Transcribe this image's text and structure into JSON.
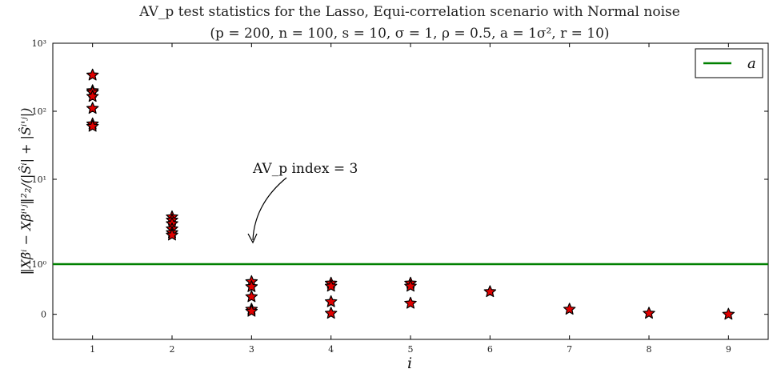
{
  "chart_data": {
    "type": "scatter",
    "title": "AV_p test statistics for the Lasso, Equi-correlation scenario with Normal noise",
    "subtitle": "(p = 200, n = 100, s = 10, σ = 1, ρ = 0.5, a = 1σ², r = 10)",
    "xlabel": "i",
    "ylabel": "‖Xβ̄ⁱ − Xβ̄ⁱ'ʲ‖²₂/(|Ŝⁱ| + |Ŝⁱ'ʲ|)",
    "x_ticks": [
      "1",
      "2",
      "3",
      "4",
      "5",
      "6",
      "7",
      "8",
      "9"
    ],
    "y_ticks": [
      {
        "value": 0,
        "label": "0"
      },
      {
        "value": 1,
        "label": "10⁰"
      },
      {
        "value": 10,
        "label": "10¹"
      },
      {
        "value": 100,
        "label": "10²"
      },
      {
        "value": 1000,
        "label": "10³"
      }
    ],
    "yscale": "symlog",
    "xlim": [
      0.5,
      9.5
    ],
    "ylim": [
      -0.5,
      1000
    ],
    "grid": false,
    "legend": {
      "position": "top-right",
      "entries": [
        {
          "label": "a",
          "color": "#008000"
        }
      ]
    },
    "threshold_line": {
      "y": 1,
      "color": "#008000"
    },
    "annotation": {
      "text": "AV_p index = 3",
      "points_to": {
        "x": 3,
        "y": 1.5
      }
    },
    "points": [
      {
        "x": 1,
        "values": [
          340,
          200,
          190,
          165,
          110,
          65,
          60
        ]
      },
      {
        "x": 2,
        "values": [
          3.6,
          3.3,
          3.0,
          2.6,
          2.35,
          2.2
        ]
      },
      {
        "x": 3,
        "values": [
          0.65,
          0.55,
          0.35,
          0.1,
          0.06
        ]
      },
      {
        "x": 4,
        "values": [
          0.62,
          0.56,
          0.25,
          0.02
        ]
      },
      {
        "x": 5,
        "values": [
          0.62,
          0.56,
          0.22
        ]
      },
      {
        "x": 6,
        "values": [
          0.45
        ]
      },
      {
        "x": 7,
        "values": [
          0.1
        ]
      },
      {
        "x": 8,
        "values": [
          0.02
        ]
      },
      {
        "x": 9,
        "values": [
          0.0
        ]
      }
    ],
    "marker": {
      "shape": "star",
      "fill": "#e00000",
      "stroke": "#000000"
    }
  }
}
